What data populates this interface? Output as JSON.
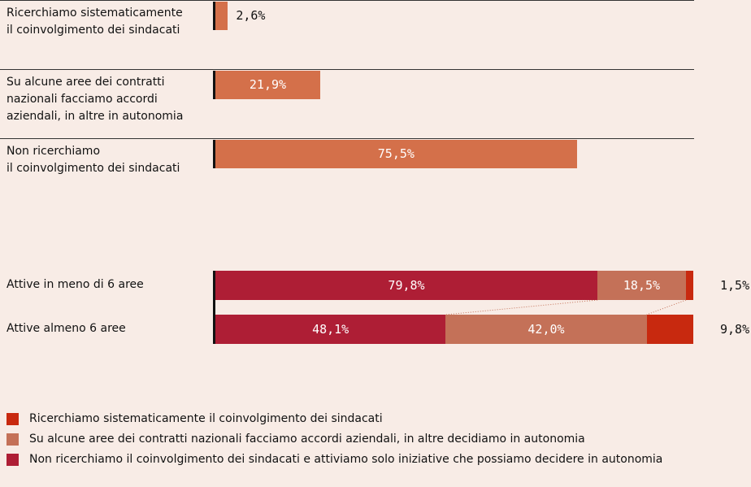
{
  "chart_data": [
    {
      "type": "bar",
      "categories": [
        "Ricerchiamo sistematicamente\nil coinvolgimento dei sindacati",
        "Su alcune aree dei contratti\nnazionali facciamo accordi\naziendali, in altre in autonomia",
        "Non ricerchiamo\nil coinvolgimento dei sindacati"
      ],
      "values": [
        2.6,
        21.9,
        75.5
      ],
      "value_labels": [
        "2,6%",
        "21,9%",
        "75,5%"
      ],
      "color": "#d4704a"
    },
    {
      "type": "stacked_bar",
      "categories": [
        "Attive in meno di 6 aree",
        "Attive almeno 6 aree"
      ],
      "series": [
        {
          "name": "Ricerchiamo sistematicamente il coinvolgimento dei sindacati",
          "color": "#c8290f",
          "values": [
            1.5,
            9.8
          ],
          "value_labels": [
            "1,5%",
            "9,8%"
          ]
        },
        {
          "name": "Su alcune aree dei contratti nazionali facciamo accordi aziendali, in altre decidiamo in autonomia",
          "color": "#c47158",
          "values": [
            18.5,
            42.0
          ],
          "value_labels": [
            "18,5%",
            "42,0%"
          ]
        },
        {
          "name": "Non ricerchiamo il coinvolgimento dei sindacati e attiviamo solo iniziative che possiamo decidere in autonomia",
          "color": "#ae1e35",
          "values": [
            79.8,
            48.1
          ],
          "value_labels": [
            "79,8%",
            "48,1%"
          ]
        }
      ]
    }
  ]
}
